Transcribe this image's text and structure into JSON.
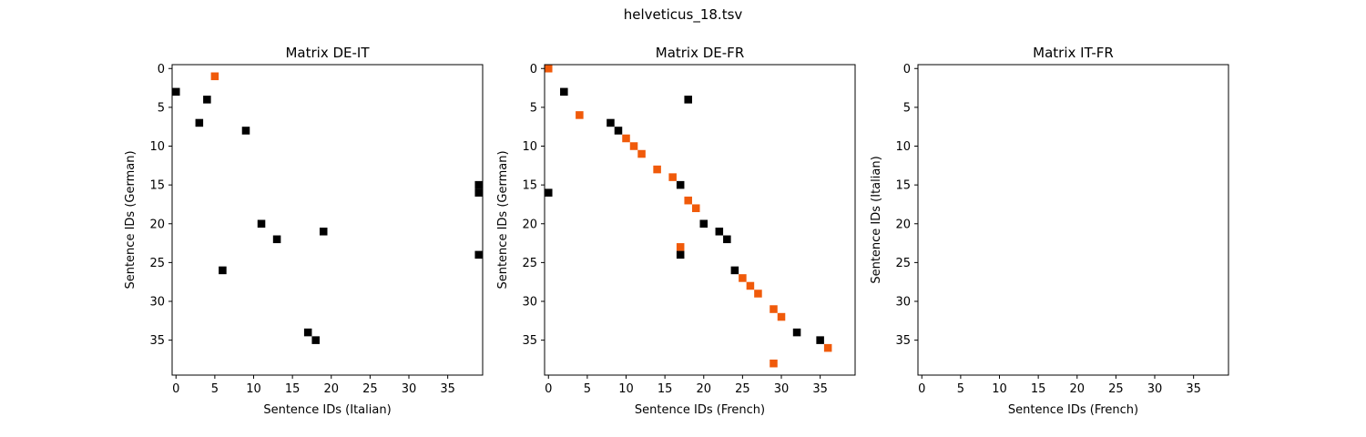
{
  "figure": {
    "title": "helveticus_18.tsv"
  },
  "colors": {
    "black_cell": "#000000",
    "orange_cell": "#f05a0a"
  },
  "chart_data": [
    {
      "type": "heatmap",
      "title": "Matrix DE-IT",
      "xlabel": "Sentence IDs (Italian)",
      "ylabel": "Sentence IDs (German)",
      "xlim": [
        -0.5,
        39.5
      ],
      "ylim": [
        -0.5,
        39.5
      ],
      "y_inverted": true,
      "xticks": [
        0,
        5,
        10,
        15,
        20,
        25,
        30,
        35
      ],
      "yticks": [
        0,
        5,
        10,
        15,
        20,
        25,
        30,
        35
      ],
      "grid": false,
      "cells": [
        {
          "x": 5,
          "y": 1,
          "color": "orange"
        },
        {
          "x": 0,
          "y": 3,
          "color": "black"
        },
        {
          "x": 4,
          "y": 4,
          "color": "black"
        },
        {
          "x": 3,
          "y": 7,
          "color": "black"
        },
        {
          "x": 9,
          "y": 8,
          "color": "black"
        },
        {
          "x": 39,
          "y": 15,
          "color": "black"
        },
        {
          "x": 39,
          "y": 16,
          "color": "black"
        },
        {
          "x": 11,
          "y": 20,
          "color": "black"
        },
        {
          "x": 19,
          "y": 21,
          "color": "black"
        },
        {
          "x": 13,
          "y": 22,
          "color": "black"
        },
        {
          "x": 39,
          "y": 24,
          "color": "black"
        },
        {
          "x": 6,
          "y": 26,
          "color": "black"
        },
        {
          "x": 17,
          "y": 34,
          "color": "black"
        },
        {
          "x": 18,
          "y": 35,
          "color": "black"
        }
      ]
    },
    {
      "type": "heatmap",
      "title": "Matrix DE-FR",
      "xlabel": "Sentence IDs (French)",
      "ylabel": "Sentence IDs (German)",
      "xlim": [
        -0.5,
        39.5
      ],
      "ylim": [
        -0.5,
        39.5
      ],
      "y_inverted": true,
      "xticks": [
        0,
        5,
        10,
        15,
        20,
        25,
        30,
        35
      ],
      "yticks": [
        0,
        5,
        10,
        15,
        20,
        25,
        30,
        35
      ],
      "grid": false,
      "cells": [
        {
          "x": 0,
          "y": 0,
          "color": "orange"
        },
        {
          "x": 2,
          "y": 3,
          "color": "black"
        },
        {
          "x": 18,
          "y": 4,
          "color": "black"
        },
        {
          "x": 4,
          "y": 6,
          "color": "orange"
        },
        {
          "x": 8,
          "y": 7,
          "color": "black"
        },
        {
          "x": 9,
          "y": 8,
          "color": "black"
        },
        {
          "x": 10,
          "y": 9,
          "color": "orange"
        },
        {
          "x": 11,
          "y": 10,
          "color": "orange"
        },
        {
          "x": 12,
          "y": 11,
          "color": "orange"
        },
        {
          "x": 14,
          "y": 13,
          "color": "orange"
        },
        {
          "x": 16,
          "y": 14,
          "color": "orange"
        },
        {
          "x": 17,
          "y": 15,
          "color": "black"
        },
        {
          "x": 0,
          "y": 16,
          "color": "black"
        },
        {
          "x": 18,
          "y": 17,
          "color": "orange"
        },
        {
          "x": 19,
          "y": 18,
          "color": "orange"
        },
        {
          "x": 20,
          "y": 20,
          "color": "black"
        },
        {
          "x": 22,
          "y": 21,
          "color": "black"
        },
        {
          "x": 23,
          "y": 22,
          "color": "black"
        },
        {
          "x": 17,
          "y": 23,
          "color": "orange"
        },
        {
          "x": 17,
          "y": 24,
          "color": "black"
        },
        {
          "x": 24,
          "y": 26,
          "color": "black"
        },
        {
          "x": 25,
          "y": 27,
          "color": "orange"
        },
        {
          "x": 26,
          "y": 28,
          "color": "orange"
        },
        {
          "x": 27,
          "y": 29,
          "color": "orange"
        },
        {
          "x": 29,
          "y": 31,
          "color": "orange"
        },
        {
          "x": 30,
          "y": 32,
          "color": "orange"
        },
        {
          "x": 32,
          "y": 34,
          "color": "black"
        },
        {
          "x": 35,
          "y": 35,
          "color": "black"
        },
        {
          "x": 36,
          "y": 36,
          "color": "orange"
        },
        {
          "x": 29,
          "y": 38,
          "color": "orange"
        }
      ]
    },
    {
      "type": "heatmap",
      "title": "Matrix IT-FR",
      "xlabel": "Sentence IDs (French)",
      "ylabel": "Sentence IDs (Italian)",
      "xlim": [
        -0.5,
        39.5
      ],
      "ylim": [
        -0.5,
        39.5
      ],
      "y_inverted": true,
      "xticks": [
        0,
        5,
        10,
        15,
        20,
        25,
        30,
        35
      ],
      "yticks": [
        0,
        5,
        10,
        15,
        20,
        25,
        30,
        35
      ],
      "grid": false,
      "cells": []
    }
  ]
}
